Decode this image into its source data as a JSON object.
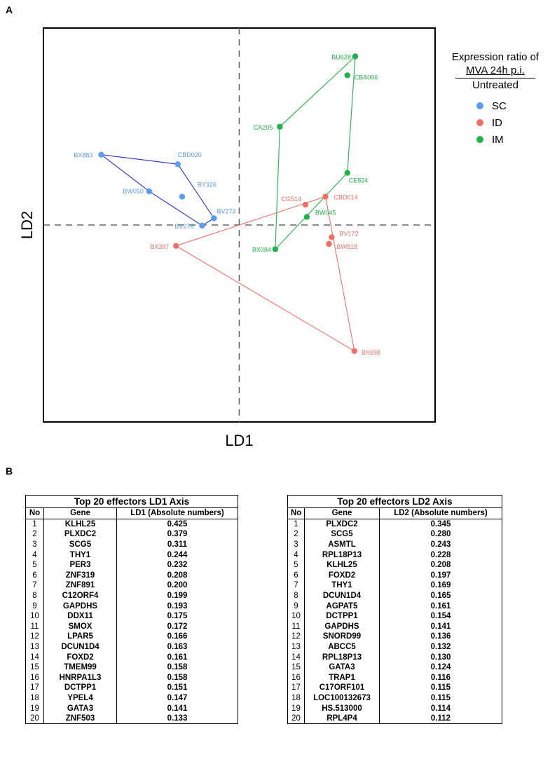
{
  "panels": {
    "a": "A",
    "b": "B"
  },
  "chart_data": {
    "type": "scatter",
    "xlabel": "LD1",
    "ylabel": "LD2",
    "legend": {
      "title_line1": "Expression ratio of",
      "title_line2": "MVA 24h p.i.",
      "title_line3": "Untreated",
      "placement": "right",
      "entries": [
        {
          "name": "SC",
          "color": "#5b9cf0"
        },
        {
          "name": "ID",
          "color": "#f07065"
        },
        {
          "name": "IM",
          "color": "#1fb34a"
        }
      ]
    },
    "xlim": [
      -10,
      10
    ],
    "ylim": [
      -10,
      10
    ],
    "reference_lines": {
      "x": 0,
      "y": 0
    },
    "series": [
      {
        "name": "SC",
        "color": "#5b9cf0",
        "hull_color": "#2233cc",
        "points": [
          {
            "label": "BX883",
            "x": -7.05,
            "y": 3.57
          },
          {
            "label": "CBD020",
            "x": -3.14,
            "y": 3.09
          },
          {
            "label": "BW050",
            "x": -4.6,
            "y": 1.71
          },
          {
            "label": "BY326",
            "x": -2.92,
            "y": 1.44
          },
          {
            "label": "BV273",
            "x": -1.29,
            "y": 0.34
          },
          {
            "label": "BV276",
            "x": -1.9,
            "y": -0.03
          }
        ],
        "hull": [
          "BX883",
          "CBD020",
          "BV273",
          "BV276",
          "BW050"
        ]
      },
      {
        "name": "ID",
        "color": "#f07065",
        "hull_color": "#f07065",
        "points": [
          {
            "label": "CG514",
            "x": 3.38,
            "y": 1.03
          },
          {
            "label": "CBD014",
            "x": 4.4,
            "y": 1.44
          },
          {
            "label": "BV172",
            "x": 4.72,
            "y": -0.62
          },
          {
            "label": "BW818",
            "x": 4.58,
            "y": -0.96
          },
          {
            "label": "BX397",
            "x": -3.23,
            "y": -1.06
          },
          {
            "label": "BX698",
            "x": 5.88,
            "y": -6.4
          }
        ],
        "hull": [
          "BX397",
          "CBD014",
          "BX698"
        ]
      },
      {
        "name": "IM",
        "color": "#1fb34a",
        "hull_color": "#1fb34a",
        "points": [
          {
            "label": "BU628",
            "x": 5.92,
            "y": 8.56
          },
          {
            "label": "CBA006",
            "x": 5.52,
            "y": 7.6
          },
          {
            "label": "CA205",
            "x": 2.07,
            "y": 4.99
          },
          {
            "label": "CE824",
            "x": 5.52,
            "y": 2.65
          },
          {
            "label": "BW045",
            "x": 3.45,
            "y": 0.41
          },
          {
            "label": "BX084",
            "x": 1.84,
            "y": -1.23
          }
        ],
        "hull": [
          "BU628",
          "CE824",
          "BX084",
          "CA205"
        ]
      }
    ]
  },
  "tables": {
    "ld1": {
      "title": "Top 20 effectors LD1 Axis",
      "headers": [
        "No",
        "Gene",
        "LD1 (Absolute numbers)"
      ],
      "rows": [
        [
          "1",
          "KLHL25",
          "0.425"
        ],
        [
          "2",
          "PLXDC2",
          "0.379"
        ],
        [
          "3",
          "SCG5",
          "0.311"
        ],
        [
          "4",
          "THY1",
          "0.244"
        ],
        [
          "5",
          "PER3",
          "0.232"
        ],
        [
          "6",
          "ZNF319",
          "0.208"
        ],
        [
          "7",
          "ZNF891",
          "0.200"
        ],
        [
          "8",
          "C12ORF4",
          "0.199"
        ],
        [
          "9",
          "GAPDHS",
          "0.193"
        ],
        [
          "10",
          "DDX11",
          "0.175"
        ],
        [
          "11",
          "SMOX",
          "0.172"
        ],
        [
          "12",
          "LPAR5",
          "0.166"
        ],
        [
          "13",
          "DCUN1D4",
          "0.163"
        ],
        [
          "14",
          "FOXD2",
          "0.161"
        ],
        [
          "15",
          "TMEM99",
          "0.158"
        ],
        [
          "16",
          "HNRPA1L3",
          "0.158"
        ],
        [
          "17",
          "DCTPP1",
          "0.151"
        ],
        [
          "18",
          "YPEL4",
          "0.147"
        ],
        [
          "19",
          "GATA3",
          "0.141"
        ],
        [
          "20",
          "ZNF503",
          "0.133"
        ]
      ]
    },
    "ld2": {
      "title": "Top 20 effectors LD2 Axis",
      "headers": [
        "No",
        "Gene",
        "LD2 (Absolute numbers)"
      ],
      "rows": [
        [
          "1",
          "PLXDC2",
          "0.345"
        ],
        [
          "2",
          "SCG5",
          "0.280"
        ],
        [
          "3",
          "ASMTL",
          "0.243"
        ],
        [
          "4",
          "RPL18P13",
          "0.228"
        ],
        [
          "5",
          "KLHL25",
          "0.208"
        ],
        [
          "6",
          "FOXD2",
          "0.197"
        ],
        [
          "7",
          "THY1",
          "0.169"
        ],
        [
          "8",
          "DCUN1D4",
          "0.165"
        ],
        [
          "9",
          "AGPAT5",
          "0.161"
        ],
        [
          "10",
          "DCTPP1",
          "0.154"
        ],
        [
          "11",
          "GAPDHS",
          "0.141"
        ],
        [
          "12",
          "SNORD99",
          "0.136"
        ],
        [
          "13",
          "ABCC5",
          "0.132"
        ],
        [
          "14",
          "RPL18P13",
          "0.130"
        ],
        [
          "15",
          "GATA3",
          "0.124"
        ],
        [
          "16",
          "TRAP1",
          "0.116"
        ],
        [
          "17",
          "C17ORF101",
          "0.115"
        ],
        [
          "18",
          "LOC100132673",
          "0.115"
        ],
        [
          "19",
          "HS.513000",
          "0.114"
        ],
        [
          "20",
          "RPL4P4",
          "0.112"
        ]
      ]
    }
  }
}
